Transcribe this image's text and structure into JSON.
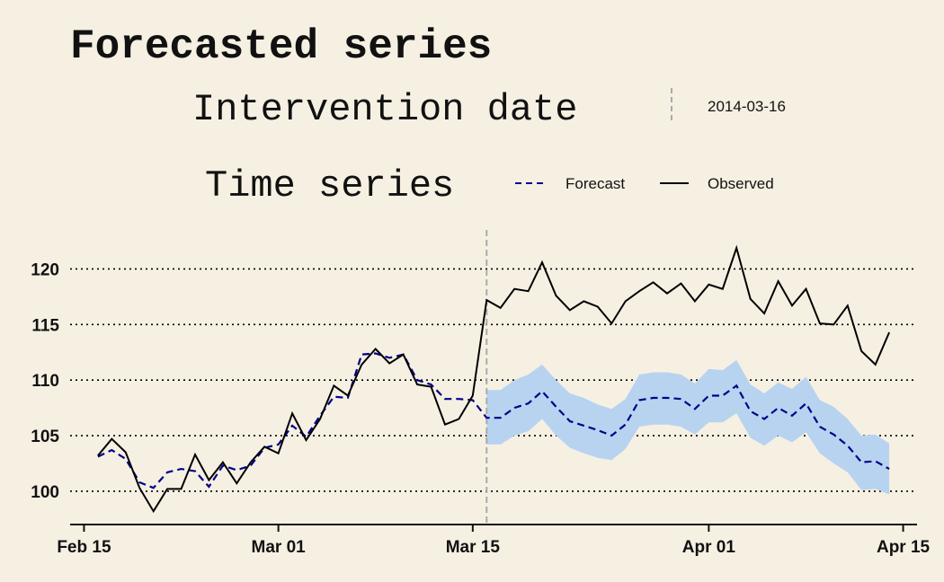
{
  "chart_data": {
    "type": "line",
    "title": "Forecasted series",
    "xlabel": "",
    "ylabel": "",
    "intervention": {
      "legend_title": "Intervention date",
      "label": "2014-03-16",
      "date": "2014-03-16",
      "color": "#aaaaaa"
    },
    "legend": {
      "title": "Time series",
      "position": "top",
      "entries": [
        {
          "name": "Forecast",
          "color": "#00008b",
          "dash": true
        },
        {
          "name": "Observed",
          "color": "#000000",
          "dash": false
        }
      ]
    },
    "x_ticks": [
      {
        "date": "2014-02-15",
        "label": "Feb 15"
      },
      {
        "date": "2014-03-01",
        "label": "Mar 01"
      },
      {
        "date": "2014-03-15",
        "label": "Mar 15"
      },
      {
        "date": "2014-04-01",
        "label": "Apr 01"
      },
      {
        "date": "2014-04-15",
        "label": "Apr 15"
      }
    ],
    "y_ticks": [
      100,
      105,
      110,
      115,
      120
    ],
    "xlim": [
      "2014-02-14",
      "2014-04-16"
    ],
    "ylim": [
      97,
      124
    ],
    "grid": "horizontal dotted",
    "ribbon_color": "#b8d3ef",
    "dates": [
      "2014-02-16",
      "2014-02-17",
      "2014-02-18",
      "2014-02-19",
      "2014-02-20",
      "2014-02-21",
      "2014-02-22",
      "2014-02-23",
      "2014-02-24",
      "2014-02-25",
      "2014-02-26",
      "2014-02-27",
      "2014-02-28",
      "2014-03-01",
      "2014-03-02",
      "2014-03-03",
      "2014-03-04",
      "2014-03-05",
      "2014-03-06",
      "2014-03-07",
      "2014-03-08",
      "2014-03-09",
      "2014-03-10",
      "2014-03-11",
      "2014-03-12",
      "2014-03-13",
      "2014-03-14",
      "2014-03-15",
      "2014-03-16",
      "2014-03-17",
      "2014-03-18",
      "2014-03-19",
      "2014-03-20",
      "2014-03-21",
      "2014-03-22",
      "2014-03-23",
      "2014-03-24",
      "2014-03-25",
      "2014-03-26",
      "2014-03-27",
      "2014-03-28",
      "2014-03-29",
      "2014-03-30",
      "2014-03-31",
      "2014-04-01",
      "2014-04-02",
      "2014-04-03",
      "2014-04-04",
      "2014-04-05",
      "2014-04-06",
      "2014-04-07",
      "2014-04-08",
      "2014-04-09",
      "2014-04-10",
      "2014-04-11",
      "2014-04-12",
      "2014-04-13",
      "2014-04-14"
    ],
    "observed": [
      103.2,
      104.7,
      103.5,
      100.3,
      98.2,
      100.2,
      100.2,
      103.3,
      101.0,
      102.6,
      100.7,
      102.6,
      104.0,
      103.4,
      107.0,
      104.6,
      106.5,
      109.5,
      108.6,
      111.4,
      112.8,
      111.5,
      112.3,
      109.6,
      109.4,
      106.0,
      106.5,
      108.6,
      117.2,
      116.5,
      118.2,
      118.0,
      120.6,
      117.6,
      116.3,
      117.1,
      116.6,
      115.1,
      117.1,
      118.0,
      118.8,
      117.8,
      118.7,
      117.1,
      118.6,
      118.2,
      121.9,
      117.3,
      116.0,
      118.9,
      116.7,
      118.2,
      115.1,
      115.0,
      116.7,
      112.6,
      111.4,
      114.3
    ],
    "forecast": [
      103.1,
      103.7,
      102.9,
      100.8,
      100.3,
      101.7,
      102.0,
      101.8,
      100.4,
      102.3,
      101.9,
      102.3,
      103.9,
      104.2,
      105.9,
      104.9,
      106.8,
      108.5,
      108.4,
      112.3,
      112.4,
      112.0,
      112.3,
      110.0,
      109.6,
      108.3,
      108.3,
      108.2,
      106.6,
      106.6,
      107.5,
      107.9,
      109.0,
      107.6,
      106.3,
      105.9,
      105.5,
      105.0,
      106.0,
      108.2,
      108.4,
      108.4,
      108.3,
      107.4,
      108.6,
      108.6,
      109.5,
      107.2,
      106.5,
      107.5,
      106.8,
      107.9,
      105.8,
      105.1,
      104.1,
      102.6,
      102.7,
      102.0
    ],
    "lower": [
      null,
      null,
      null,
      null,
      null,
      null,
      null,
      null,
      null,
      null,
      null,
      null,
      null,
      null,
      null,
      null,
      null,
      null,
      null,
      null,
      null,
      null,
      null,
      null,
      null,
      null,
      null,
      null,
      104.2,
      104.2,
      105.0,
      105.4,
      106.5,
      105.0,
      103.9,
      103.4,
      103.0,
      102.8,
      103.8,
      105.8,
      106.0,
      106.0,
      105.8,
      105.1,
      106.2,
      106.2,
      107.0,
      104.8,
      104.1,
      105.0,
      104.4,
      105.3,
      103.4,
      102.5,
      101.7,
      100.1,
      100.2,
      99.7
    ],
    "upper": [
      null,
      null,
      null,
      null,
      null,
      null,
      null,
      null,
      null,
      null,
      null,
      null,
      null,
      null,
      null,
      null,
      null,
      null,
      null,
      null,
      null,
      null,
      null,
      null,
      null,
      null,
      null,
      null,
      109.1,
      109.1,
      110.0,
      110.5,
      111.4,
      110.0,
      108.8,
      108.4,
      107.8,
      107.4,
      108.3,
      110.5,
      110.7,
      110.7,
      110.5,
      109.7,
      111.0,
      110.9,
      111.8,
      109.6,
      108.8,
      109.8,
      109.2,
      110.3,
      108.2,
      107.6,
      106.5,
      105.0,
      105.1,
      104.3
    ]
  }
}
